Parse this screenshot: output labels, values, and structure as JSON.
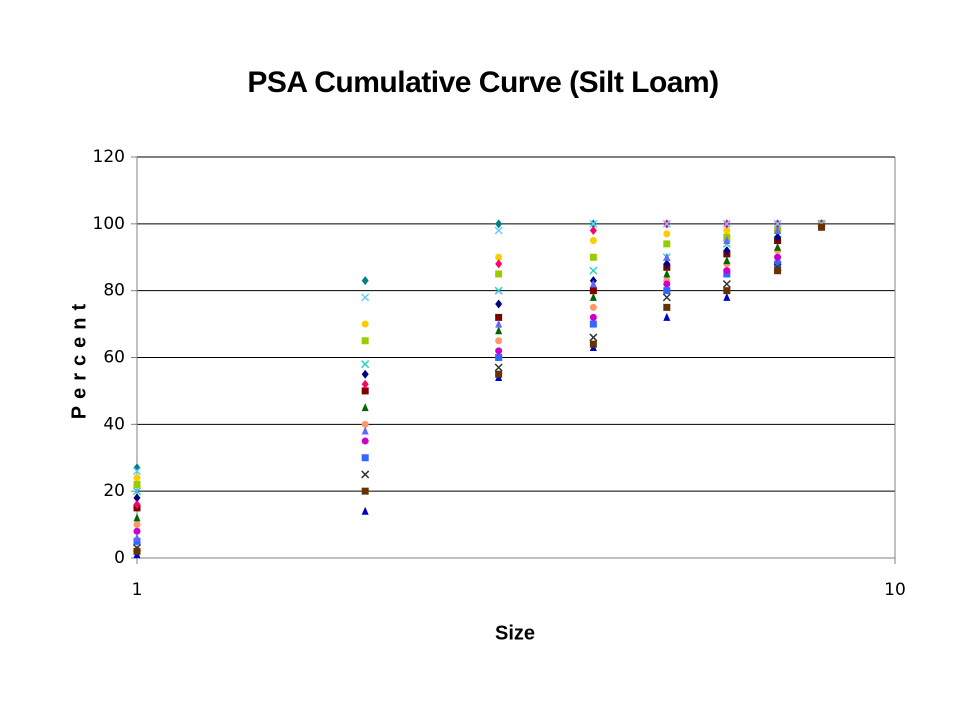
{
  "chart_data": {
    "type": "scatter",
    "title": "PSA Cumulative Curve (Silt Loam)",
    "x_label": "Size",
    "y_label": "Percent",
    "x": [
      1,
      2,
      3,
      4,
      5,
      6,
      7,
      8
    ],
    "xlim": [
      1,
      10
    ],
    "xticks": [
      1,
      10
    ],
    "xscale": "log",
    "ylim": [
      0,
      120
    ],
    "yticks": [
      0,
      20,
      40,
      60,
      80,
      100,
      120
    ],
    "grid": true,
    "series": [
      {
        "color": "#0000cc",
        "marker": "triangle",
        "values": [
          1,
          14,
          54,
          63,
          72,
          78,
          86,
          99
        ]
      },
      {
        "color": "#008080",
        "marker": "diamond",
        "values": [
          27,
          83,
          100,
          100,
          100,
          100,
          100,
          100
        ]
      },
      {
        "color": "#3366ff",
        "marker": "square",
        "values": [
          5,
          30,
          60,
          70,
          80,
          85,
          88,
          100
        ]
      },
      {
        "color": "#ff9966",
        "marker": "circle",
        "values": [
          10,
          40,
          65,
          75,
          83,
          88,
          92,
          100
        ]
      },
      {
        "color": "#800000",
        "marker": "square",
        "values": [
          15,
          50,
          72,
          80,
          87,
          91,
          95,
          100
        ]
      },
      {
        "color": "#33cccc",
        "marker": "x",
        "values": [
          20,
          58,
          80,
          86,
          90,
          94,
          97,
          100
        ]
      },
      {
        "color": "#cc00cc",
        "marker": "circle",
        "values": [
          8,
          35,
          62,
          72,
          82,
          86,
          90,
          100
        ]
      },
      {
        "color": "#006600",
        "marker": "triangle",
        "values": [
          12,
          45,
          68,
          78,
          85,
          89,
          93,
          100
        ]
      },
      {
        "color": "#000080",
        "marker": "diamond",
        "values": [
          18,
          55,
          76,
          83,
          88,
          92,
          96,
          100
        ]
      },
      {
        "color": "#ffcc00",
        "marker": "circle",
        "values": [
          24,
          70,
          90,
          95,
          97,
          98,
          99,
          100
        ]
      },
      {
        "color": "#333333",
        "marker": "x",
        "values": [
          3,
          25,
          57,
          66,
          78,
          82,
          87,
          100
        ]
      },
      {
        "color": "#99cc00",
        "marker": "square",
        "values": [
          22,
          65,
          85,
          90,
          94,
          96,
          98,
          100
        ]
      },
      {
        "color": "#6666ff",
        "marker": "triangle",
        "values": [
          6,
          38,
          70,
          82,
          90,
          95,
          98,
          100
        ]
      },
      {
        "color": "#ff0066",
        "marker": "diamond",
        "values": [
          16,
          52,
          88,
          98,
          100,
          100,
          100,
          100
        ]
      },
      {
        "color": "#66ccff",
        "marker": "x",
        "values": [
          26,
          78,
          98,
          100,
          100,
          100,
          100,
          100
        ]
      },
      {
        "color": "#663300",
        "marker": "square",
        "values": [
          2,
          20,
          55,
          64,
          75,
          80,
          86,
          99
        ]
      }
    ]
  }
}
